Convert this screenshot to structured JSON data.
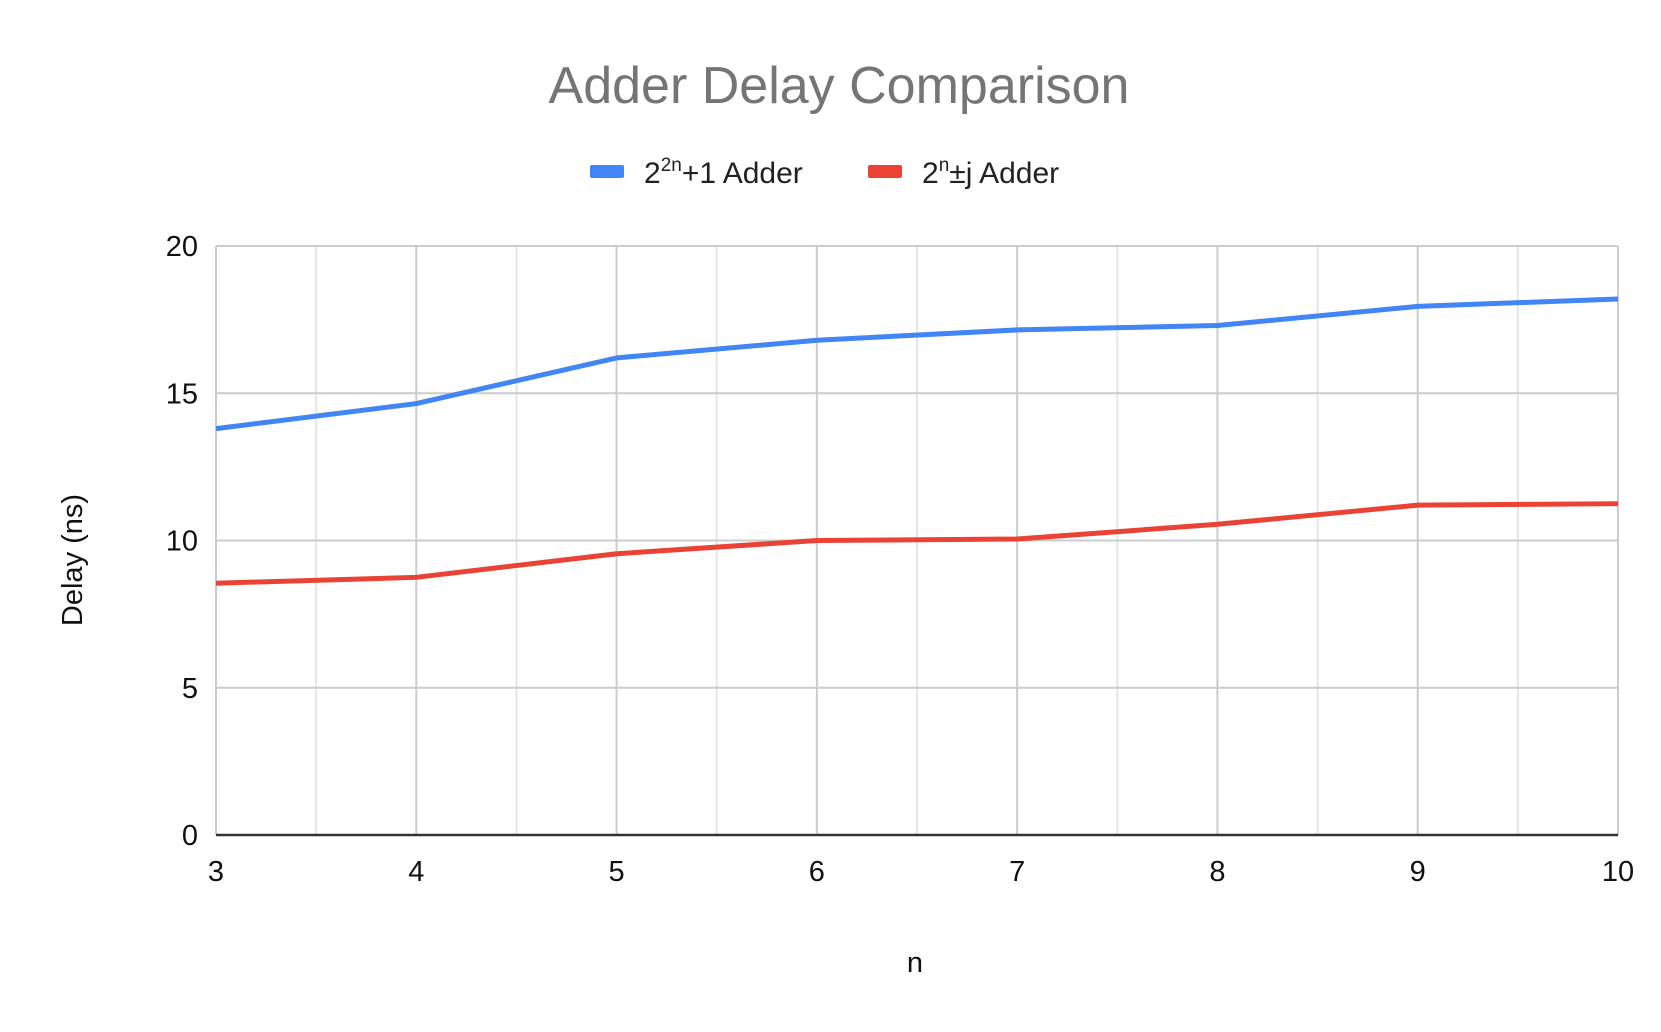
{
  "chart_data": {
    "type": "line",
    "title": "Adder Delay Comparison",
    "xlabel": "n",
    "ylabel": "Delay (ns)",
    "x": [
      3,
      4,
      5,
      6,
      7,
      8,
      9,
      10
    ],
    "xlim": [
      3,
      10
    ],
    "ylim": [
      0,
      20
    ],
    "x_ticks": [
      3,
      4,
      5,
      6,
      7,
      8,
      9,
      10
    ],
    "y_ticks": [
      0,
      5,
      10,
      15,
      20
    ],
    "grid": true,
    "legend_position": "top-center",
    "series": [
      {
        "name": "2²ⁿ+1 Adder",
        "name_base": "2",
        "name_sup": "2n",
        "name_rest": "+1 Adder",
        "color": "#4285f4",
        "values": [
          13.8,
          14.65,
          16.2,
          16.8,
          17.15,
          17.3,
          17.95,
          18.2
        ]
      },
      {
        "name": "2ⁿ±j Adder",
        "name_base": "2",
        "name_sup": "n",
        "name_rest": "±j Adder",
        "color": "#ea4335",
        "values": [
          8.55,
          8.75,
          9.55,
          10.0,
          10.05,
          10.55,
          11.2,
          11.25
        ]
      }
    ]
  }
}
